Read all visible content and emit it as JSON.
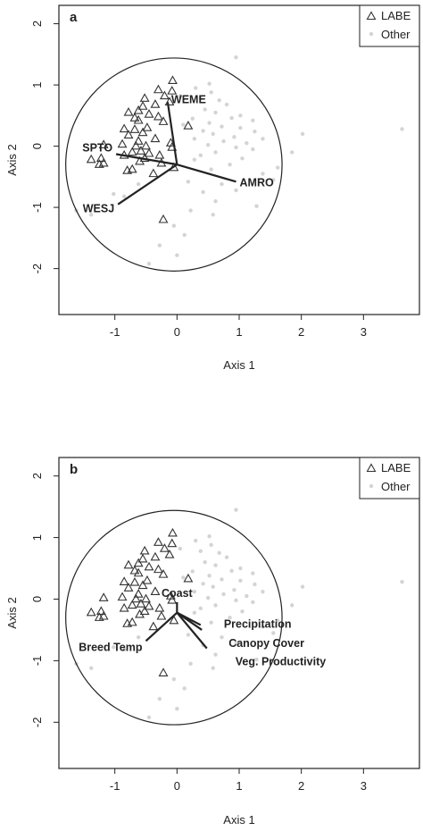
{
  "chart_data": [
    {
      "type": "scatter",
      "panel": "a",
      "xlabel": "Axis 1",
      "ylabel": "Axis 2",
      "xlim": [
        -1.9,
        3.9
      ],
      "ylim": [
        -2.75,
        2.3
      ],
      "xticks": [
        "-1",
        "0",
        "1",
        "2",
        "3"
      ],
      "yticks": [
        "-2",
        "-1",
        "0",
        "1",
        "2"
      ],
      "legend": {
        "placement": "top-right",
        "entries": [
          {
            "label": "LABE",
            "marker": "triangle"
          },
          {
            "label": "Other",
            "marker": "dot"
          }
        ]
      },
      "circle": {
        "center": [
          -0.05,
          -0.3
        ],
        "radius": 1.74
      },
      "vectors": [
        {
          "label": "WEME",
          "x": -0.15,
          "y": 0.72,
          "label_pos": "right"
        },
        {
          "label": "SPTO",
          "x": -0.98,
          "y": -0.13,
          "label_pos": "left"
        },
        {
          "label": "AMRO",
          "x": 0.95,
          "y": -0.58,
          "label_pos": "right"
        },
        {
          "label": "WESJ",
          "x": -0.95,
          "y": -0.95,
          "label_pos": "left"
        }
      ],
      "series": [
        {
          "name": "LABE",
          "points": [
            [
              -0.07,
              1.07
            ],
            [
              -0.3,
              0.92
            ],
            [
              -0.08,
              0.9
            ],
            [
              -0.2,
              0.82
            ],
            [
              -0.52,
              0.78
            ],
            [
              -0.12,
              0.72
            ],
            [
              -0.35,
              0.68
            ],
            [
              -0.55,
              0.65
            ],
            [
              -0.62,
              0.58
            ],
            [
              -0.78,
              0.55
            ],
            [
              -0.45,
              0.52
            ],
            [
              -0.3,
              0.48
            ],
            [
              -0.68,
              0.46
            ],
            [
              -0.62,
              0.42
            ],
            [
              -0.22,
              0.4
            ],
            [
              0.18,
              0.33
            ],
            [
              -0.48,
              0.3
            ],
            [
              -0.85,
              0.28
            ],
            [
              -0.68,
              0.27
            ],
            [
              -0.55,
              0.22
            ],
            [
              -0.78,
              0.18
            ],
            [
              -0.35,
              0.12
            ],
            [
              -0.62,
              0.08
            ],
            [
              -0.1,
              0.05
            ],
            [
              -0.88,
              0.03
            ],
            [
              -0.5,
              0.0
            ],
            [
              -0.66,
              0.0
            ],
            [
              -1.18,
              0.02
            ],
            [
              -0.08,
              -0.02
            ],
            [
              -0.58,
              -0.08
            ],
            [
              -0.72,
              -0.1
            ],
            [
              -0.45,
              -0.12
            ],
            [
              -0.28,
              -0.15
            ],
            [
              -0.85,
              -0.15
            ],
            [
              -0.52,
              -0.2
            ],
            [
              -1.22,
              -0.2
            ],
            [
              -1.38,
              -0.22
            ],
            [
              -0.6,
              -0.25
            ],
            [
              -1.18,
              -0.28
            ],
            [
              -1.25,
              -0.3
            ],
            [
              -0.25,
              -0.28
            ],
            [
              -0.05,
              -0.35
            ],
            [
              -0.72,
              -0.38
            ],
            [
              -0.8,
              -0.4
            ],
            [
              -0.38,
              -0.45
            ],
            [
              -0.22,
              -1.2
            ]
          ]
        },
        {
          "name": "Other",
          "points": [
            [
              0.95,
              1.45
            ],
            [
              0.52,
              1.02
            ],
            [
              0.3,
              0.95
            ],
            [
              0.55,
              0.88
            ],
            [
              0.05,
              0.82
            ],
            [
              0.38,
              0.78
            ],
            [
              0.68,
              0.75
            ],
            [
              0.8,
              0.68
            ],
            [
              0.45,
              0.6
            ],
            [
              0.62,
              0.55
            ],
            [
              1.02,
              0.5
            ],
            [
              0.88,
              0.46
            ],
            [
              0.25,
              0.45
            ],
            [
              1.22,
              0.42
            ],
            [
              0.52,
              0.38
            ],
            [
              0.1,
              0.35
            ],
            [
              0.72,
              0.32
            ],
            [
              1.02,
              0.3
            ],
            [
              0.42,
              0.25
            ],
            [
              1.25,
              0.24
            ],
            [
              0.58,
              0.2
            ],
            [
              0.92,
              0.15
            ],
            [
              0.28,
              0.12
            ],
            [
              1.38,
              0.12
            ],
            [
              0.75,
              0.08
            ],
            [
              1.12,
              0.05
            ],
            [
              0.5,
              0.02
            ],
            [
              0.95,
              -0.02
            ],
            [
              1.22,
              -0.05
            ],
            [
              0.62,
              -0.1
            ],
            [
              1.85,
              -0.1
            ],
            [
              0.38,
              -0.15
            ],
            [
              1.05,
              -0.2
            ],
            [
              0.28,
              -0.22
            ],
            [
              0.85,
              -0.3
            ],
            [
              1.62,
              -0.35
            ],
            [
              0.55,
              -0.38
            ],
            [
              1.38,
              -0.45
            ],
            [
              1.55,
              -0.55
            ],
            [
              0.18,
              -0.58
            ],
            [
              0.72,
              -0.62
            ],
            [
              0.95,
              -0.72
            ],
            [
              0.42,
              -0.75
            ],
            [
              0.62,
              -0.9
            ],
            [
              1.28,
              -0.98
            ],
            [
              0.22,
              -1.05
            ],
            [
              0.58,
              -1.12
            ],
            [
              -0.05,
              -1.3
            ],
            [
              0.12,
              -1.45
            ],
            [
              -0.28,
              -1.62
            ],
            [
              0.0,
              -1.78
            ],
            [
              -0.45,
              -1.92
            ],
            [
              -1.62,
              -1.05
            ],
            [
              -1.38,
              -1.12
            ],
            [
              -0.85,
              -0.82
            ],
            [
              -1.02,
              -0.78
            ],
            [
              -0.62,
              -0.62
            ],
            [
              3.62,
              0.28
            ],
            [
              2.02,
              0.2
            ]
          ]
        }
      ]
    },
    {
      "type": "scatter",
      "panel": "b",
      "xlabel": "Axis 1",
      "ylabel": "Axis 2",
      "xlim": [
        -1.9,
        3.9
      ],
      "ylim": [
        -2.75,
        2.3
      ],
      "xticks": [
        "-1",
        "0",
        "1",
        "2",
        "3"
      ],
      "yticks": [
        "-2",
        "-1",
        "0",
        "1",
        "2"
      ],
      "legend": {
        "placement": "top-right",
        "entries": [
          {
            "label": "LABE",
            "marker": "triangle"
          },
          {
            "label": "Other",
            "marker": "dot"
          }
        ]
      },
      "circle": {
        "center": [
          -0.05,
          -0.3
        ],
        "radius": 1.74
      },
      "vectors": [
        {
          "label": "Coast",
          "x": 0.0,
          "y": -0.05,
          "label_pos": "above"
        },
        {
          "label": "Precipitation",
          "x": 0.38,
          "y": -0.42,
          "label_pos": "right"
        },
        {
          "label": "Canopy Cover",
          "x": 0.4,
          "y": -0.5,
          "label_pos": "right"
        },
        {
          "label": "Veg. Productivity",
          "x": 0.48,
          "y": -0.8,
          "label_pos": "right"
        },
        {
          "label": "Breed Temp",
          "x": -0.5,
          "y": -0.68,
          "label_pos": "left"
        }
      ],
      "series": [
        {
          "name": "LABE",
          "points": [
            [
              -0.07,
              1.07
            ],
            [
              -0.3,
              0.92
            ],
            [
              -0.08,
              0.9
            ],
            [
              -0.2,
              0.82
            ],
            [
              -0.52,
              0.78
            ],
            [
              -0.12,
              0.72
            ],
            [
              -0.35,
              0.68
            ],
            [
              -0.55,
              0.65
            ],
            [
              -0.62,
              0.58
            ],
            [
              -0.78,
              0.55
            ],
            [
              -0.45,
              0.52
            ],
            [
              -0.3,
              0.48
            ],
            [
              -0.68,
              0.46
            ],
            [
              -0.62,
              0.42
            ],
            [
              -0.22,
              0.4
            ],
            [
              0.18,
              0.33
            ],
            [
              -0.48,
              0.3
            ],
            [
              -0.85,
              0.28
            ],
            [
              -0.68,
              0.27
            ],
            [
              -0.55,
              0.22
            ],
            [
              -0.78,
              0.18
            ],
            [
              -0.35,
              0.12
            ],
            [
              -0.62,
              0.08
            ],
            [
              -0.1,
              0.05
            ],
            [
              -0.88,
              0.03
            ],
            [
              -0.5,
              0.0
            ],
            [
              -0.66,
              0.0
            ],
            [
              -1.18,
              0.02
            ],
            [
              -0.08,
              -0.02
            ],
            [
              -0.58,
              -0.08
            ],
            [
              -0.72,
              -0.1
            ],
            [
              -0.45,
              -0.12
            ],
            [
              -0.28,
              -0.15
            ],
            [
              -0.85,
              -0.15
            ],
            [
              -0.52,
              -0.2
            ],
            [
              -1.22,
              -0.2
            ],
            [
              -1.38,
              -0.22
            ],
            [
              -0.6,
              -0.25
            ],
            [
              -1.18,
              -0.28
            ],
            [
              -1.25,
              -0.3
            ],
            [
              -0.25,
              -0.28
            ],
            [
              -0.05,
              -0.35
            ],
            [
              -0.72,
              -0.38
            ],
            [
              -0.8,
              -0.4
            ],
            [
              -0.38,
              -0.45
            ],
            [
              -0.22,
              -1.2
            ]
          ]
        },
        {
          "name": "Other",
          "points": [
            [
              0.95,
              1.45
            ],
            [
              0.52,
              1.02
            ],
            [
              0.3,
              0.95
            ],
            [
              0.55,
              0.88
            ],
            [
              0.05,
              0.82
            ],
            [
              0.38,
              0.78
            ],
            [
              0.68,
              0.75
            ],
            [
              0.8,
              0.68
            ],
            [
              0.45,
              0.6
            ],
            [
              0.62,
              0.55
            ],
            [
              1.02,
              0.5
            ],
            [
              0.88,
              0.46
            ],
            [
              0.25,
              0.45
            ],
            [
              1.22,
              0.42
            ],
            [
              0.52,
              0.38
            ],
            [
              0.1,
              0.35
            ],
            [
              0.72,
              0.32
            ],
            [
              1.02,
              0.3
            ],
            [
              0.42,
              0.25
            ],
            [
              1.25,
              0.24
            ],
            [
              0.58,
              0.2
            ],
            [
              0.92,
              0.15
            ],
            [
              0.28,
              0.12
            ],
            [
              1.38,
              0.12
            ],
            [
              0.75,
              0.08
            ],
            [
              1.12,
              0.05
            ],
            [
              0.5,
              0.02
            ],
            [
              0.95,
              -0.02
            ],
            [
              1.22,
              -0.05
            ],
            [
              0.62,
              -0.1
            ],
            [
              1.85,
              -0.1
            ],
            [
              0.38,
              -0.15
            ],
            [
              1.05,
              -0.2
            ],
            [
              0.28,
              -0.22
            ],
            [
              0.85,
              -0.3
            ],
            [
              1.62,
              -0.35
            ],
            [
              0.55,
              -0.38
            ],
            [
              1.38,
              -0.45
            ],
            [
              1.55,
              -0.55
            ],
            [
              0.18,
              -0.58
            ],
            [
              0.72,
              -0.62
            ],
            [
              0.95,
              -0.72
            ],
            [
              0.42,
              -0.75
            ],
            [
              0.62,
              -0.9
            ],
            [
              1.28,
              -0.98
            ],
            [
              0.22,
              -1.05
            ],
            [
              0.58,
              -1.12
            ],
            [
              -0.05,
              -1.3
            ],
            [
              0.12,
              -1.45
            ],
            [
              -0.28,
              -1.62
            ],
            [
              0.0,
              -1.78
            ],
            [
              -0.45,
              -1.92
            ],
            [
              -1.62,
              -1.05
            ],
            [
              -1.38,
              -1.12
            ],
            [
              -0.85,
              -0.82
            ],
            [
              -1.02,
              -0.78
            ],
            [
              -0.62,
              -0.62
            ],
            [
              3.62,
              0.28
            ],
            [
              2.02,
              0.2
            ]
          ]
        }
      ]
    }
  ]
}
